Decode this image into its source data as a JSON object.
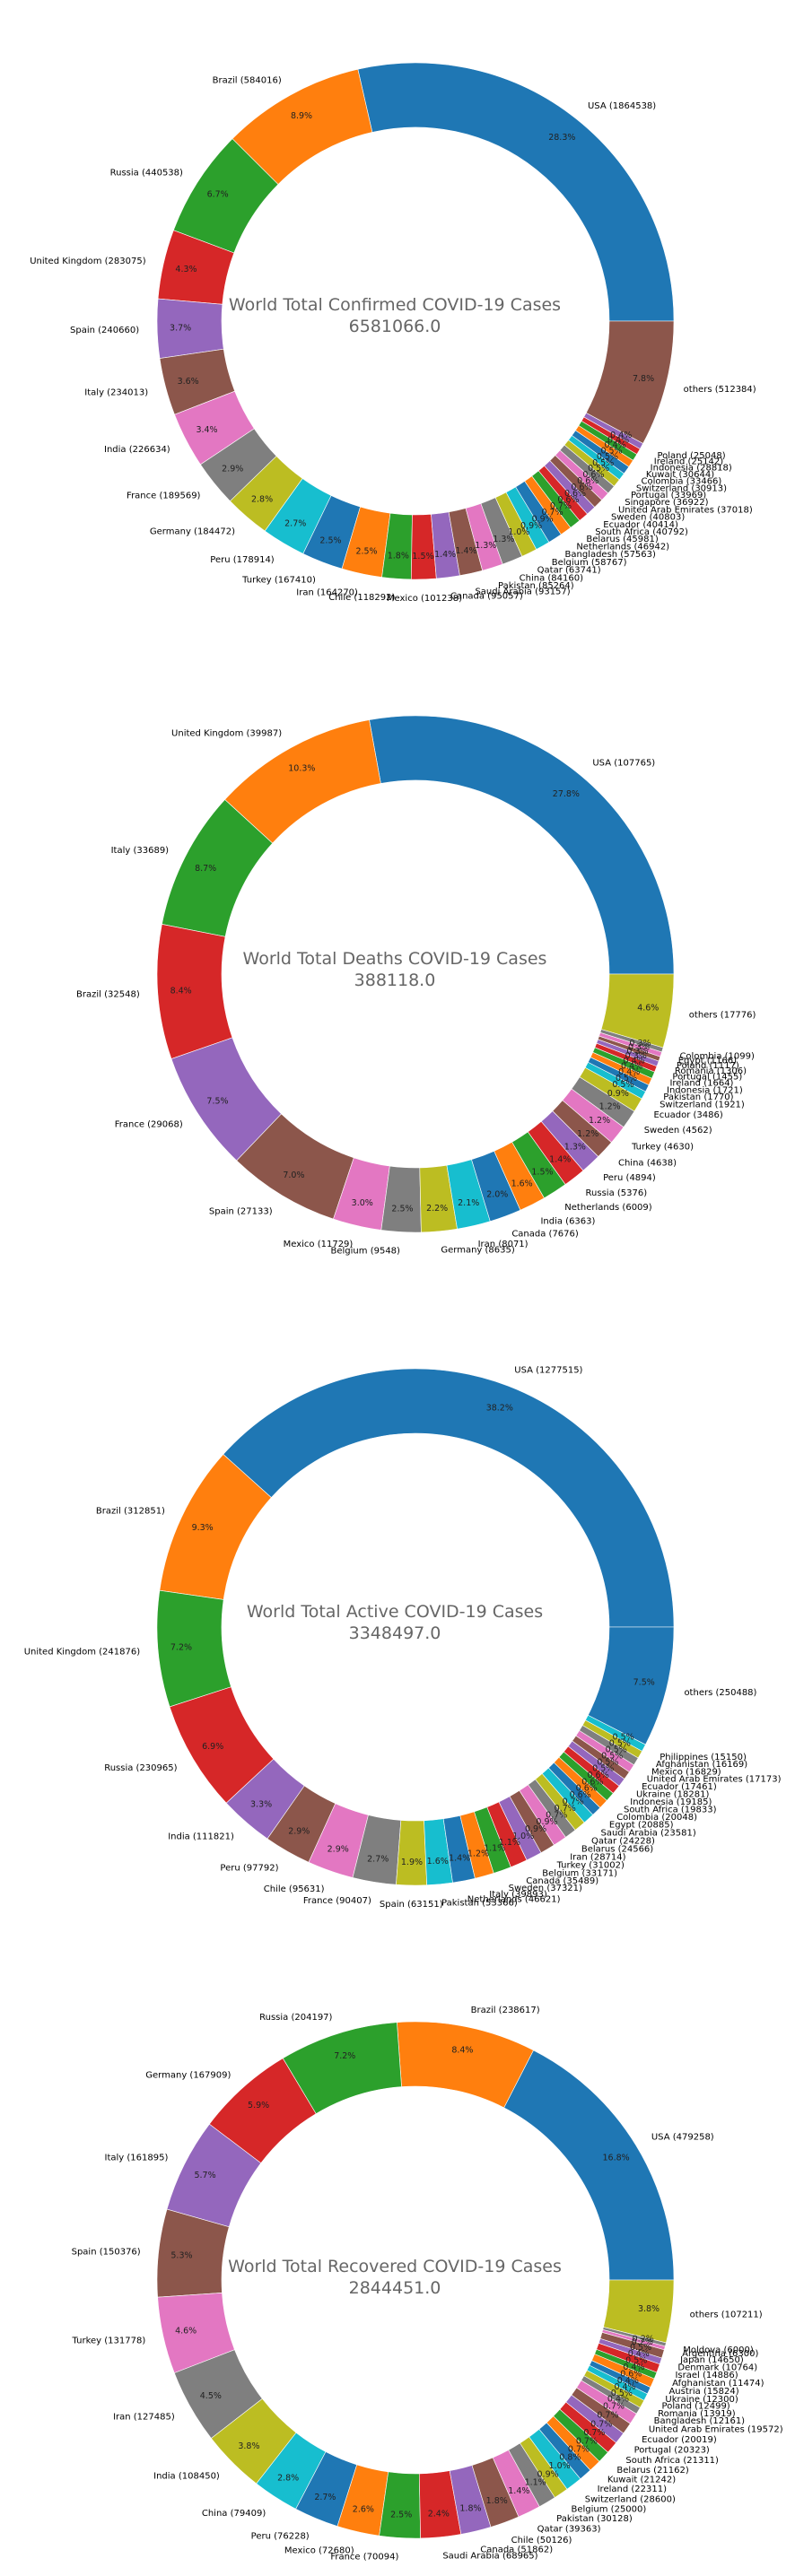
{
  "palette": [
    "#1f77b4",
    "#ff7f0e",
    "#2ca02c",
    "#d62728",
    "#9467bd",
    "#8c564b",
    "#e377c2",
    "#7f7f7f",
    "#bcbd22",
    "#17becf"
  ],
  "chart_data": [
    {
      "type": "pie",
      "title": "World Total Confirmed COVID-19 Cases",
      "total": "6581066.0",
      "slices": [
        {
          "label": "USA (1864538)",
          "value": 1864538,
          "pct": "28.3%"
        },
        {
          "label": "Brazil (584016)",
          "value": 584016,
          "pct": "8.9%"
        },
        {
          "label": "Russia (440538)",
          "value": 440538,
          "pct": "6.7%"
        },
        {
          "label": "United Kingdom (283075)",
          "value": 283075,
          "pct": "4.3%"
        },
        {
          "label": "Spain (240660)",
          "value": 240660,
          "pct": "3.7%"
        },
        {
          "label": "Italy (234013)",
          "value": 234013,
          "pct": "3.6%"
        },
        {
          "label": "India (226634)",
          "value": 226634,
          "pct": "3.4%"
        },
        {
          "label": "France (189569)",
          "value": 189569,
          "pct": "2.9%"
        },
        {
          "label": "Germany (184472)",
          "value": 184472,
          "pct": "2.8%"
        },
        {
          "label": "Peru (178914)",
          "value": 178914,
          "pct": "2.7%"
        },
        {
          "label": "Turkey (167410)",
          "value": 167410,
          "pct": "2.5%"
        },
        {
          "label": "Iran (164270)",
          "value": 164270,
          "pct": "2.5%"
        },
        {
          "label": "Chile (118292)",
          "value": 118292,
          "pct": "1.8%"
        },
        {
          "label": "Mexico (101238)",
          "value": 101238,
          "pct": "1.5%"
        },
        {
          "label": "Canada (95057)",
          "value": 95057,
          "pct": "1.4%"
        },
        {
          "label": "Saudi Arabia (93157)",
          "value": 93157,
          "pct": "1.4%"
        },
        {
          "label": "Pakistan (85264)",
          "value": 85264,
          "pct": "1.3%"
        },
        {
          "label": "China (84160)",
          "value": 84160,
          "pct": "1.3%"
        },
        {
          "label": "Qatar (63741)",
          "value": 63741,
          "pct": "1.0%"
        },
        {
          "label": "Belgium (58767)",
          "value": 58767,
          "pct": "0.9%"
        },
        {
          "label": "Bangladesh (57563)",
          "value": 57563,
          "pct": "0.9%"
        },
        {
          "label": "Netherlands (46942)",
          "value": 46942,
          "pct": "0.7%"
        },
        {
          "label": "Belarus (45981)",
          "value": 45981,
          "pct": "0.7%"
        },
        {
          "label": "South Africa (40792)",
          "value": 40792,
          "pct": "0.6%"
        },
        {
          "label": "Ecuador (40414)",
          "value": 40414,
          "pct": "0.6%"
        },
        {
          "label": "Sweden (40803)",
          "value": 40803,
          "pct": "0.6%"
        },
        {
          "label": "United Arab Emirates (37018)",
          "value": 37018,
          "pct": "0.6%"
        },
        {
          "label": "Singapore (36922)",
          "value": 36922,
          "pct": "0.6%"
        },
        {
          "label": "Portugal (33969)",
          "value": 33969,
          "pct": "0.5%"
        },
        {
          "label": "Switzerland (30913)",
          "value": 30913,
          "pct": "0.5%"
        },
        {
          "label": "Colombia (33466)",
          "value": 33466,
          "pct": "0.5%"
        },
        {
          "label": "Kuwait (30644)",
          "value": 30644,
          "pct": "0.5%"
        },
        {
          "label": "Indonesia (28818)",
          "value": 28818,
          "pct": "0.4%"
        },
        {
          "label": "Ireland (25142)",
          "value": 25142,
          "pct": "0.4%"
        },
        {
          "label": "Poland (25048)",
          "value": 25048,
          "pct": "0.4%"
        },
        {
          "label": "others (512384)",
          "value": 512384,
          "pct": "7.8%"
        }
      ]
    },
    {
      "type": "pie",
      "title": "World Total Deaths COVID-19 Cases",
      "total": "388118.0",
      "slices": [
        {
          "label": "USA (107765)",
          "value": 107765,
          "pct": "27.8%"
        },
        {
          "label": "United Kingdom (39987)",
          "value": 39987,
          "pct": "10.3%"
        },
        {
          "label": "Italy (33689)",
          "value": 33689,
          "pct": "8.7%"
        },
        {
          "label": "Brazil (32548)",
          "value": 32548,
          "pct": "8.4%"
        },
        {
          "label": "France (29068)",
          "value": 29068,
          "pct": "7.5%"
        },
        {
          "label": "Spain (27133)",
          "value": 27133,
          "pct": "7.0%"
        },
        {
          "label": "Mexico (11729)",
          "value": 11729,
          "pct": "3.0%"
        },
        {
          "label": "Belgium (9548)",
          "value": 9548,
          "pct": "2.5%"
        },
        {
          "label": "Germany (8635)",
          "value": 8635,
          "pct": "2.2%"
        },
        {
          "label": "Iran (8071)",
          "value": 8071,
          "pct": "2.1%"
        },
        {
          "label": "Canada (7676)",
          "value": 7676,
          "pct": "2.0%"
        },
        {
          "label": "India (6363)",
          "value": 6363,
          "pct": "1.6%"
        },
        {
          "label": "Netherlands (6009)",
          "value": 6009,
          "pct": "1.5%"
        },
        {
          "label": "Russia (5376)",
          "value": 5376,
          "pct": "1.4%"
        },
        {
          "label": "Peru (4894)",
          "value": 4894,
          "pct": "1.3%"
        },
        {
          "label": "China (4638)",
          "value": 4638,
          "pct": "1.2%"
        },
        {
          "label": "Turkey (4630)",
          "value": 4630,
          "pct": "1.2%"
        },
        {
          "label": "Sweden (4562)",
          "value": 4562,
          "pct": "1.2%"
        },
        {
          "label": "Ecuador (3486)",
          "value": 3486,
          "pct": "0.9%"
        },
        {
          "label": "Switzerland (1921)",
          "value": 1921,
          "pct": "0.5%"
        },
        {
          "label": "Pakistan (1770)",
          "value": 1770,
          "pct": "0.5%"
        },
        {
          "label": "Indonesia (1721)",
          "value": 1721,
          "pct": "0.4%"
        },
        {
          "label": "Ireland (1664)",
          "value": 1664,
          "pct": "0.4%"
        },
        {
          "label": "Portugal (1455)",
          "value": 1455,
          "pct": "0.4%"
        },
        {
          "label": "Romania (1306)",
          "value": 1306,
          "pct": "0.3%"
        },
        {
          "label": "Poland (1117)",
          "value": 1117,
          "pct": "0.3%"
        },
        {
          "label": "Egypt (1166)",
          "value": 1166,
          "pct": "0.3%"
        },
        {
          "label": "Colombia (1099)",
          "value": 1099,
          "pct": "0.3%"
        },
        {
          "label": "others (17776)",
          "value": 17776,
          "pct": "4.6%"
        }
      ]
    },
    {
      "type": "pie",
      "title": "World Total Active COVID-19 Cases",
      "total": "3348497.0",
      "slices": [
        {
          "label": "USA (1277515)",
          "value": 1277515,
          "pct": "38.2%"
        },
        {
          "label": "Brazil (312851)",
          "value": 312851,
          "pct": "9.3%"
        },
        {
          "label": "United Kingdom (241876)",
          "value": 241876,
          "pct": "7.2%"
        },
        {
          "label": "Russia (230965)",
          "value": 230965,
          "pct": "6.9%"
        },
        {
          "label": "India (111821)",
          "value": 111821,
          "pct": "3.3%"
        },
        {
          "label": "Peru (97792)",
          "value": 97792,
          "pct": "2.9%"
        },
        {
          "label": "Chile (95631)",
          "value": 95631,
          "pct": "2.9%"
        },
        {
          "label": "France (90407)",
          "value": 90407,
          "pct": "2.7%"
        },
        {
          "label": "Spain (63151)",
          "value": 63151,
          "pct": "1.9%"
        },
        {
          "label": "Pakistan (53366)",
          "value": 53366,
          "pct": "1.6%"
        },
        {
          "label": "Netherlands (46621)",
          "value": 46621,
          "pct": "1.4%"
        },
        {
          "label": "Italy (39893)",
          "value": 39893,
          "pct": "1.2%"
        },
        {
          "label": "Sweden (37321)",
          "value": 37321,
          "pct": "1.1%"
        },
        {
          "label": "Canada (35489)",
          "value": 35489,
          "pct": "1.1%"
        },
        {
          "label": "Belgium (33171)",
          "value": 33171,
          "pct": "1.0%"
        },
        {
          "label": "Turkey (31002)",
          "value": 31002,
          "pct": "0.9%"
        },
        {
          "label": "Iran (28714)",
          "value": 28714,
          "pct": "0.9%"
        },
        {
          "label": "Belarus (24566)",
          "value": 24566,
          "pct": "0.7%"
        },
        {
          "label": "Qatar (24228)",
          "value": 24228,
          "pct": "0.7%"
        },
        {
          "label": "Saudi Arabia (23581)",
          "value": 23581,
          "pct": "0.7%"
        },
        {
          "label": "Egypt (20885)",
          "value": 20885,
          "pct": "0.6%"
        },
        {
          "label": "Colombia (20048)",
          "value": 20048,
          "pct": "0.6%"
        },
        {
          "label": "South Africa (19833)",
          "value": 19833,
          "pct": "0.6%"
        },
        {
          "label": "Indonesia (19185)",
          "value": 19185,
          "pct": "0.6%"
        },
        {
          "label": "Ukraine (18281)",
          "value": 18281,
          "pct": "0.5%"
        },
        {
          "label": "Ecuador (17461)",
          "value": 17461,
          "pct": "0.5%"
        },
        {
          "label": "United Arab Emirates (17173)",
          "value": 17173,
          "pct": "0.5%"
        },
        {
          "label": "Mexico (16829)",
          "value": 16829,
          "pct": "0.5%"
        },
        {
          "label": "Afghanistan (16169)",
          "value": 16169,
          "pct": "0.5%"
        },
        {
          "label": "Philippines (15150)",
          "value": 15150,
          "pct": "0.5%"
        },
        {
          "label": "others (250488)",
          "value": 250488,
          "pct": "7.5%"
        }
      ]
    },
    {
      "type": "pie",
      "title": "World Total Recovered COVID-19 Cases",
      "total": "2844451.0",
      "slices": [
        {
          "label": "USA (479258)",
          "value": 479258,
          "pct": "16.8%"
        },
        {
          "label": "Brazil (238617)",
          "value": 238617,
          "pct": "8.4%"
        },
        {
          "label": "Russia (204197)",
          "value": 204197,
          "pct": "7.2%"
        },
        {
          "label": "Germany (167909)",
          "value": 167909,
          "pct": "5.9%"
        },
        {
          "label": "Italy (161895)",
          "value": 161895,
          "pct": "5.7%"
        },
        {
          "label": "Spain (150376)",
          "value": 150376,
          "pct": "5.3%"
        },
        {
          "label": "Turkey (131778)",
          "value": 131778,
          "pct": "4.6%"
        },
        {
          "label": "Iran (127485)",
          "value": 127485,
          "pct": "4.5%"
        },
        {
          "label": "India (108450)",
          "value": 108450,
          "pct": "3.8%"
        },
        {
          "label": "China (79409)",
          "value": 79409,
          "pct": "2.8%"
        },
        {
          "label": "Peru (76228)",
          "value": 76228,
          "pct": "2.7%"
        },
        {
          "label": "Mexico (72680)",
          "value": 72680,
          "pct": "2.6%"
        },
        {
          "label": "France (70094)",
          "value": 70094,
          "pct": "2.5%"
        },
        {
          "label": "Saudi Arabia (68965)",
          "value": 68965,
          "pct": "2.4%"
        },
        {
          "label": "Canada (51862)",
          "value": 51862,
          "pct": "1.8%"
        },
        {
          "label": "Chile (50126)",
          "value": 50126,
          "pct": "1.8%"
        },
        {
          "label": "Qatar (39363)",
          "value": 39363,
          "pct": "1.4%"
        },
        {
          "label": "Pakistan (30128)",
          "value": 30128,
          "pct": "1.1%"
        },
        {
          "label": "Belgium (25000)",
          "value": 25000,
          "pct": "0.9%"
        },
        {
          "label": "Switzerland (28600)",
          "value": 28600,
          "pct": "1.0%"
        },
        {
          "label": "Ireland (22311)",
          "value": 22311,
          "pct": "0.8%"
        },
        {
          "label": "Kuwait (21242)",
          "value": 21242,
          "pct": "0.7%"
        },
        {
          "label": "Belarus (21162)",
          "value": 21162,
          "pct": "0.7%"
        },
        {
          "label": "South Africa (21311)",
          "value": 21311,
          "pct": "0.7%"
        },
        {
          "label": "Portugal (20323)",
          "value": 20323,
          "pct": "0.7%"
        },
        {
          "label": "Ecuador (20019)",
          "value": 20019,
          "pct": "0.7%"
        },
        {
          "label": "United Arab Emirates (19572)",
          "value": 19572,
          "pct": "0.7%"
        },
        {
          "label": "Bangladesh (12161)",
          "value": 12161,
          "pct": "0.4%"
        },
        {
          "label": "Romania (13919)",
          "value": 13919,
          "pct": "0.5%"
        },
        {
          "label": "Poland (12499)",
          "value": 12499,
          "pct": "0.4%"
        },
        {
          "label": "Ukraine (12300)",
          "value": 12300,
          "pct": "0.4%"
        },
        {
          "label": "Austria (15824)",
          "value": 15824,
          "pct": "0.6%"
        },
        {
          "label": "Afghanistan (11474)",
          "value": 11474,
          "pct": "0.4%"
        },
        {
          "label": "Israel (14886)",
          "value": 14886,
          "pct": "0.5%"
        },
        {
          "label": "Denmark (10764)",
          "value": 10764,
          "pct": "0.4%"
        },
        {
          "label": "Japan (14650)",
          "value": 14650,
          "pct": "0.5%"
        },
        {
          "label": "Argentina (6300)",
          "value": 6300,
          "pct": "0.2%"
        },
        {
          "label": "Moldova (6000)",
          "value": 6000,
          "pct": "0.2%"
        },
        {
          "label": "others (107211)",
          "value": 107211,
          "pct": "3.8%"
        }
      ]
    }
  ]
}
